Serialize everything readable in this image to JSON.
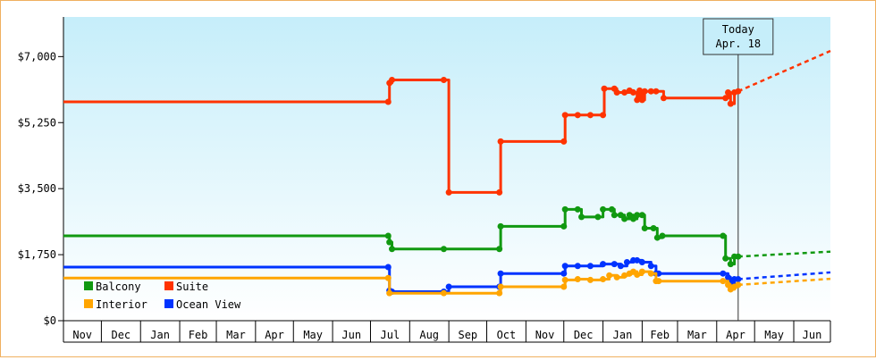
{
  "chart_data": {
    "type": "line",
    "title": "",
    "xlabel": "",
    "ylabel": "",
    "ylim": [
      0,
      8050
    ],
    "y_ticks": [
      0,
      1750,
      3500,
      5250,
      7000
    ],
    "y_tick_labels": [
      "$0",
      "$1,750",
      "$3,500",
      "$5,250",
      "$7,000"
    ],
    "x_domain": [
      "2023-11-01",
      "2025-06-30"
    ],
    "months": [
      "Nov",
      "Dec",
      "Jan",
      "Feb",
      "Mar",
      "Apr",
      "May",
      "Jun",
      "Jul",
      "Aug",
      "Sep",
      "Oct",
      "Nov",
      "Dec",
      "Jan",
      "Feb",
      "Mar",
      "Apr",
      "May",
      "Jun"
    ],
    "month_starts": [
      "2023-11-01",
      "2023-12-01",
      "2024-01-01",
      "2024-02-01",
      "2024-03-01",
      "2024-04-01",
      "2024-05-01",
      "2024-06-01",
      "2024-07-01",
      "2024-08-01",
      "2024-09-01",
      "2024-10-01",
      "2024-11-01",
      "2024-12-01",
      "2025-01-01",
      "2025-02-01",
      "2025-03-01",
      "2025-04-01",
      "2025-05-01",
      "2025-06-01"
    ],
    "today": {
      "date": "2025-04-18",
      "label_line1": "Today",
      "label_line2": "Apr. 18"
    },
    "legend": {
      "position": "bottom-left",
      "entries": [
        "Balcony",
        "Suite",
        "Interior",
        "Ocean View"
      ]
    },
    "colors": {
      "Suite": "#ff3300",
      "Balcony": "#119911",
      "Interior": "#ffa500",
      "Ocean View": "#0033ff",
      "frame": "#f0b060",
      "bg_top": "#c6eefa",
      "bg_bottom": "#ffffff"
    },
    "series": [
      {
        "name": "Suite",
        "points": [
          [
            "2023-11-01",
            5800
          ],
          [
            "2024-07-15",
            5800
          ],
          [
            "2024-07-16",
            6300
          ],
          [
            "2024-07-18",
            6380
          ],
          [
            "2024-08-28",
            6380
          ],
          [
            "2024-09-01",
            3400
          ],
          [
            "2024-10-11",
            3400
          ],
          [
            "2024-10-12",
            4750
          ],
          [
            "2024-12-01",
            4750
          ],
          [
            "2024-12-02",
            5450
          ],
          [
            "2024-12-12",
            5450
          ],
          [
            "2024-12-22",
            5450
          ],
          [
            "2025-01-01",
            5450
          ],
          [
            "2025-01-02",
            6150
          ],
          [
            "2025-01-10",
            6150
          ],
          [
            "2025-01-12",
            6050
          ],
          [
            "2025-01-18",
            6050
          ],
          [
            "2025-01-22",
            6100
          ],
          [
            "2025-01-25",
            6050
          ],
          [
            "2025-01-28",
            5850
          ],
          [
            "2025-01-30",
            6100
          ],
          [
            "2025-02-01",
            5850
          ],
          [
            "2025-02-03",
            6080
          ],
          [
            "2025-02-08",
            6080
          ],
          [
            "2025-02-12",
            6080
          ],
          [
            "2025-02-18",
            5900
          ],
          [
            "2025-04-08",
            5900
          ],
          [
            "2025-04-10",
            6050
          ],
          [
            "2025-04-12",
            5750
          ],
          [
            "2025-04-15",
            6050
          ],
          [
            "2025-04-18",
            6080
          ]
        ],
        "forecast": [
          [
            "2025-04-18",
            6080
          ],
          [
            "2025-06-30",
            7150
          ]
        ]
      },
      {
        "name": "Balcony",
        "points": [
          [
            "2023-11-01",
            2250
          ],
          [
            "2024-07-15",
            2250
          ],
          [
            "2024-07-16",
            2080
          ],
          [
            "2024-07-18",
            1900
          ],
          [
            "2024-08-28",
            1900
          ],
          [
            "2024-10-11",
            1900
          ],
          [
            "2024-10-12",
            2500
          ],
          [
            "2024-12-01",
            2500
          ],
          [
            "2024-12-02",
            2950
          ],
          [
            "2024-12-12",
            2950
          ],
          [
            "2024-12-15",
            2750
          ],
          [
            "2024-12-28",
            2750
          ],
          [
            "2025-01-01",
            2950
          ],
          [
            "2025-01-08",
            2950
          ],
          [
            "2025-01-10",
            2800
          ],
          [
            "2025-01-15",
            2800
          ],
          [
            "2025-01-18",
            2700
          ],
          [
            "2025-01-22",
            2800
          ],
          [
            "2025-01-25",
            2700
          ],
          [
            "2025-01-28",
            2800
          ],
          [
            "2025-02-01",
            2800
          ],
          [
            "2025-02-03",
            2450
          ],
          [
            "2025-02-10",
            2450
          ],
          [
            "2025-02-13",
            2200
          ],
          [
            "2025-02-17",
            2250
          ],
          [
            "2025-04-06",
            2250
          ],
          [
            "2025-04-08",
            1650
          ],
          [
            "2025-04-12",
            1500
          ],
          [
            "2025-04-15",
            1700
          ],
          [
            "2025-04-18",
            1700
          ]
        ],
        "forecast": [
          [
            "2025-04-18",
            1700
          ],
          [
            "2025-06-30",
            1830
          ]
        ]
      },
      {
        "name": "Ocean View",
        "points": [
          [
            "2023-11-01",
            1420
          ],
          [
            "2024-07-15",
            1420
          ],
          [
            "2024-07-16",
            800
          ],
          [
            "2024-07-18",
            770
          ],
          [
            "2024-08-28",
            770
          ],
          [
            "2024-09-01",
            900
          ],
          [
            "2024-10-11",
            900
          ],
          [
            "2024-10-12",
            1250
          ],
          [
            "2024-12-01",
            1250
          ],
          [
            "2024-12-02",
            1450
          ],
          [
            "2024-12-12",
            1450
          ],
          [
            "2024-12-22",
            1450
          ],
          [
            "2025-01-01",
            1500
          ],
          [
            "2025-01-10",
            1500
          ],
          [
            "2025-01-15",
            1450
          ],
          [
            "2025-01-20",
            1550
          ],
          [
            "2025-01-25",
            1600
          ],
          [
            "2025-01-28",
            1600
          ],
          [
            "2025-02-01",
            1550
          ],
          [
            "2025-02-08",
            1450
          ],
          [
            "2025-02-12",
            1250
          ],
          [
            "2025-02-14",
            1250
          ],
          [
            "2025-04-06",
            1250
          ],
          [
            "2025-04-10",
            1150
          ],
          [
            "2025-04-12",
            1000
          ],
          [
            "2025-04-15",
            1100
          ],
          [
            "2025-04-18",
            1100
          ]
        ],
        "forecast": [
          [
            "2025-04-18",
            1100
          ],
          [
            "2025-06-30",
            1280
          ]
        ]
      },
      {
        "name": "Interior",
        "points": [
          [
            "2023-11-01",
            1130
          ],
          [
            "2024-07-15",
            1130
          ],
          [
            "2024-07-16",
            730
          ],
          [
            "2024-08-28",
            730
          ],
          [
            "2024-10-11",
            730
          ],
          [
            "2024-10-12",
            900
          ],
          [
            "2024-12-01",
            900
          ],
          [
            "2024-12-02",
            1080
          ],
          [
            "2024-12-12",
            1100
          ],
          [
            "2024-12-22",
            1080
          ],
          [
            "2025-01-01",
            1100
          ],
          [
            "2025-01-06",
            1200
          ],
          [
            "2025-01-12",
            1150
          ],
          [
            "2025-01-18",
            1200
          ],
          [
            "2025-01-22",
            1250
          ],
          [
            "2025-01-25",
            1300
          ],
          [
            "2025-01-28",
            1220
          ],
          [
            "2025-02-01",
            1300
          ],
          [
            "2025-02-08",
            1250
          ],
          [
            "2025-02-12",
            1050
          ],
          [
            "2025-02-14",
            1050
          ],
          [
            "2025-04-06",
            1050
          ],
          [
            "2025-04-10",
            950
          ],
          [
            "2025-04-12",
            830
          ],
          [
            "2025-04-15",
            900
          ],
          [
            "2025-04-18",
            950
          ]
        ],
        "forecast": [
          [
            "2025-04-18",
            950
          ],
          [
            "2025-06-30",
            1110
          ]
        ]
      }
    ]
  }
}
